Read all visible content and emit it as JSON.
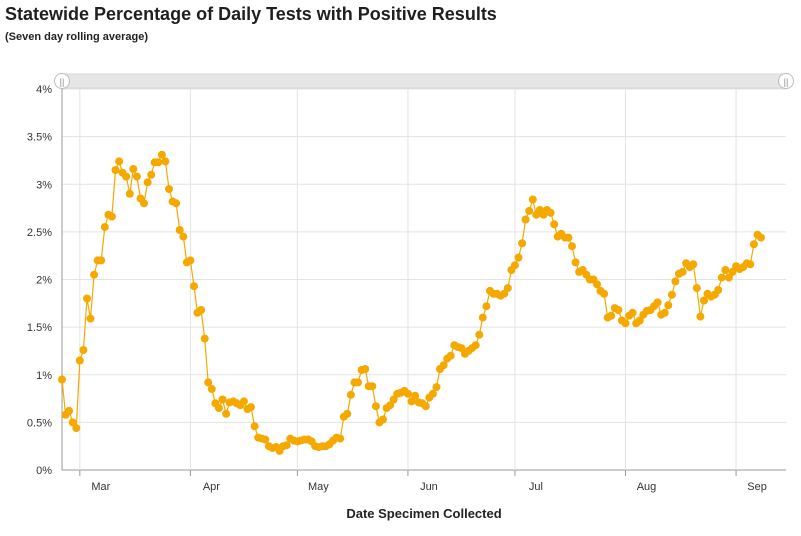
{
  "chart_data": {
    "type": "line",
    "title": "Statewide Percentage of Daily Tests with Positive Results",
    "subtitle": "(Seven day rolling average)",
    "xlabel": "Date Specimen Collected",
    "ylabel": "",
    "ylim": [
      0,
      4
    ],
    "y_ticks": [
      "0%",
      "0.5%",
      "1%",
      "1.5%",
      "2%",
      "2.5%",
      "3%",
      "3.5%",
      "4%"
    ],
    "x_tick_labels": [
      "Mar",
      "Apr",
      "May",
      "Jun",
      "Jul",
      "Aug",
      "Sep"
    ],
    "x_tick_dates": [
      "2020-03-01",
      "2020-04-01",
      "2020-05-01",
      "2020-06-01",
      "2020-07-01",
      "2020-08-01",
      "2020-09-01"
    ],
    "x_range": [
      "2020-02-25",
      "2020-09-15"
    ],
    "grid": true,
    "legend": "none",
    "series_color": "#F5A800",
    "series": [
      {
        "start_date": "2020-02-25",
        "values": [
          0.95,
          0.58,
          0.62,
          0.5,
          0.44,
          1.15,
          1.26,
          1.8,
          1.59,
          2.05,
          2.2,
          2.2,
          2.55,
          2.68,
          2.66,
          3.15,
          3.24,
          3.12,
          3.08,
          2.9,
          3.16,
          3.08,
          2.85,
          2.8,
          3.02,
          3.1,
          3.23,
          3.23,
          3.31,
          3.24,
          2.95,
          2.82,
          2.8,
          2.52,
          2.45,
          2.18,
          2.2,
          1.93,
          1.65,
          1.68,
          1.38,
          0.92,
          0.85,
          0.7,
          0.65,
          0.74,
          0.59,
          0.71,
          0.72,
          0.7,
          0.68,
          0.72,
          0.64,
          0.66,
          0.46,
          0.34,
          0.33,
          0.32,
          0.25,
          0.23,
          0.24,
          0.2,
          0.25,
          0.26,
          0.33,
          0.31,
          0.3,
          0.31,
          0.32,
          0.32,
          0.3,
          0.25,
          0.24,
          0.25,
          0.25,
          0.27,
          0.31,
          0.34,
          0.33,
          0.56,
          0.59,
          0.79,
          0.92,
          0.92,
          1.05,
          1.06,
          0.88,
          0.88,
          0.67,
          0.5,
          0.53,
          0.65,
          0.68,
          0.74,
          0.8,
          0.81,
          0.83,
          0.8,
          0.72,
          0.78,
          0.71,
          0.7,
          0.67,
          0.76,
          0.8,
          0.87,
          1.06,
          1.1,
          1.17,
          1.2,
          1.31,
          1.29,
          1.28,
          1.22,
          1.25,
          1.28,
          1.31,
          1.42,
          1.6,
          1.72,
          1.88,
          1.85,
          1.85,
          1.83,
          1.85,
          1.91,
          2.1,
          2.15,
          2.23,
          2.38,
          2.63,
          2.72,
          2.84,
          2.68,
          2.73,
          2.68,
          2.73,
          2.7,
          2.58,
          2.45,
          2.48,
          2.44,
          2.44,
          2.35,
          2.18,
          2.08,
          2.1,
          2.05,
          2.0,
          2.0,
          1.95,
          1.88,
          1.85,
          1.6,
          1.62,
          1.7,
          1.68,
          1.57,
          1.54,
          1.62,
          1.65,
          1.54,
          1.57,
          1.63,
          1.67,
          1.68,
          1.72,
          1.76,
          1.63,
          1.65,
          1.73,
          1.84,
          1.98,
          2.06,
          2.08,
          2.17,
          2.13,
          2.16,
          1.91,
          1.61,
          1.78,
          1.85,
          1.82,
          1.84,
          1.89,
          2.02,
          2.1,
          2.02,
          2.08,
          2.14,
          2.11,
          2.13,
          2.17,
          2.16,
          2.37,
          2.47,
          2.44
        ]
      }
    ]
  },
  "range_slider": {
    "left_handle": "||",
    "right_handle": "||"
  }
}
